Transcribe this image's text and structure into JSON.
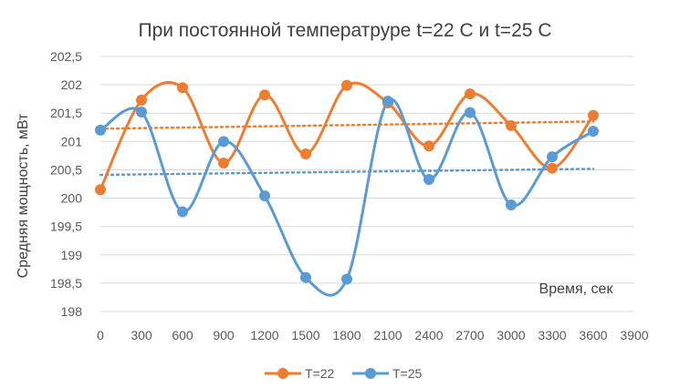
{
  "chart_data": {
    "type": "scatter",
    "title": "При постоянной температруре t=22 С и t=25 С",
    "xlabel": "Время, сек",
    "ylabel": "Средняя мощность, мВт",
    "xlim": [
      0,
      3900
    ],
    "ylim": [
      198,
      202.5
    ],
    "x_ticks": [
      "0",
      "300",
      "600",
      "900",
      "1200",
      "1500",
      "1800",
      "2100",
      "2400",
      "2700",
      "3000",
      "3300",
      "3600",
      "3900"
    ],
    "y_ticks": [
      "198",
      "198,5",
      "199",
      "199,5",
      "200",
      "200,5",
      "201",
      "201,5",
      "202",
      "202,5"
    ],
    "grid": true,
    "legend_position": "bottom",
    "x": [
      0,
      300,
      600,
      900,
      1200,
      1500,
      1800,
      2100,
      2400,
      2700,
      3000,
      3300,
      3600
    ],
    "series": [
      {
        "name": "T=22",
        "color": "#ed7d31",
        "values": [
          200.15,
          201.73,
          201.95,
          200.62,
          201.82,
          200.78,
          201.99,
          201.68,
          200.92,
          201.84,
          201.28,
          200.53,
          201.46
        ],
        "trendline": "linear"
      },
      {
        "name": "T=25",
        "color": "#5b9bd5",
        "values": [
          201.2,
          201.52,
          199.76,
          201.0,
          200.04,
          198.6,
          198.57,
          201.71,
          200.33,
          201.51,
          199.88,
          200.73,
          201.18
        ],
        "trendline": "linear"
      }
    ]
  }
}
